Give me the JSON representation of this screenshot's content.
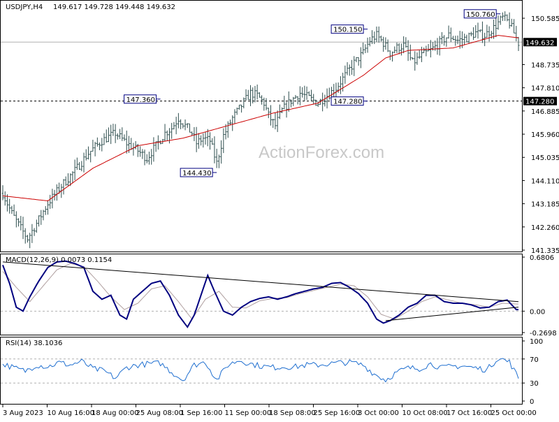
{
  "header": {
    "symbol": "USDJPY,H4",
    "ohlc": "149.617 149.728 149.448 149.632"
  },
  "watermark": "ActionForex.com",
  "colors": {
    "price_bars": "#2f4f4f",
    "ma": "#cc0000",
    "macd_line": "#000080",
    "signal_line": "#b0a0a0",
    "rsi": "#1f6fd0",
    "label_border": "#000080",
    "current_tag_bg": "#000000",
    "current_tag_fg": "#ffffff"
  },
  "chart_data": [
    {
      "type": "candlestick",
      "panel": "price",
      "ylim": [
        141.335,
        151.2
      ],
      "y_ticks": [
        "150.585",
        "149.632",
        "148.735",
        "147.810",
        "147.280",
        "146.885",
        "145.960",
        "145.035",
        "144.110",
        "143.185",
        "142.260",
        "141.335"
      ],
      "current_price": "149.632",
      "level_line": "147.280",
      "x_labels": [
        "3 Aug 2023",
        "10 Aug 16:00",
        "18 Aug 00:00",
        "25 Aug 08:00",
        "1 Sep 16:00",
        "11 Sep 00:00",
        "18 Sep 08:00",
        "25 Sep 16:00",
        "3 Oct 00:00",
        "10 Oct 08:00",
        "17 Oct 16:00",
        "25 Oct 00:00"
      ],
      "close_path": [
        [
          0,
          143.6
        ],
        [
          4,
          142.8
        ],
        [
          8,
          142.2
        ],
        [
          11,
          141.8
        ],
        [
          15,
          142.4
        ],
        [
          20,
          143.2
        ],
        [
          26,
          143.9
        ],
        [
          32,
          144.5
        ],
        [
          38,
          145.2
        ],
        [
          44,
          145.7
        ],
        [
          50,
          146.0
        ],
        [
          55,
          145.6
        ],
        [
          60,
          145.3
        ],
        [
          64,
          145.0
        ],
        [
          68,
          145.5
        ],
        [
          72,
          146.0
        ],
        [
          75,
          146.2
        ],
        [
          78,
          146.6
        ],
        [
          81,
          146.3
        ],
        [
          84,
          146.0
        ],
        [
          86,
          145.6
        ],
        [
          89,
          145.8
        ],
        [
          92,
          145.7
        ],
        [
          95,
          144.8
        ],
        [
          98,
          145.9
        ],
        [
          102,
          146.6
        ],
        [
          106,
          147.1
        ],
        [
          110,
          147.6
        ],
        [
          113,
          147.5
        ],
        [
          116,
          147.2
        ],
        [
          118,
          146.7
        ],
        [
          121,
          146.3
        ],
        [
          124,
          146.9
        ],
        [
          128,
          147.3
        ],
        [
          132,
          147.6
        ],
        [
          136,
          147.4
        ],
        [
          140,
          147.2
        ],
        [
          144,
          147.5
        ],
        [
          148,
          147.8
        ],
        [
          152,
          148.3
        ],
        [
          156,
          148.8
        ],
        [
          160,
          149.2
        ],
        [
          163,
          149.7
        ],
        [
          166,
          149.9
        ],
        [
          169,
          149.6
        ],
        [
          172,
          149.2
        ],
        [
          175,
          149.4
        ],
        [
          178,
          149.5
        ],
        [
          182,
          148.8
        ],
        [
          186,
          149.1
        ],
        [
          190,
          149.3
        ],
        [
          194,
          149.6
        ],
        [
          198,
          149.9
        ],
        [
          202,
          149.7
        ],
        [
          206,
          149.8
        ],
        [
          210,
          150.0
        ],
        [
          214,
          149.9
        ],
        [
          218,
          150.2
        ],
        [
          222,
          150.6
        ],
        [
          225,
          150.4
        ],
        [
          229,
          149.6
        ]
      ],
      "ma_path": [
        [
          0,
          143.5
        ],
        [
          20,
          143.3
        ],
        [
          40,
          144.6
        ],
        [
          60,
          145.5
        ],
        [
          80,
          145.8
        ],
        [
          100,
          146.3
        ],
        [
          120,
          146.8
        ],
        [
          140,
          147.2
        ],
        [
          160,
          148.3
        ],
        [
          170,
          149.0
        ],
        [
          180,
          149.3
        ],
        [
          200,
          149.4
        ],
        [
          220,
          149.9
        ],
        [
          229,
          149.8
        ]
      ],
      "annotations": [
        {
          "label": "147.360",
          "x": 70,
          "value": 147.36
        },
        {
          "label": "144.430",
          "x": 95,
          "value": 144.43
        },
        {
          "label": "150.150",
          "x": 162,
          "value": 150.15
        },
        {
          "label": "147.280",
          "x": 162,
          "value": 147.28
        },
        {
          "label": "150.760",
          "x": 221,
          "value": 150.76
        }
      ],
      "x_count": 230
    },
    {
      "type": "line",
      "panel": "macd",
      "title": "MACD(12,26,9) 0.0073 0.1154",
      "ylim": [
        -0.2698,
        0.6806
      ],
      "y_ticks": [
        "0.6806",
        "0.00",
        "-0.2698"
      ],
      "series": [
        {
          "values": [
            [
              0,
              0.58
            ],
            [
              3,
              0.35
            ],
            [
              6,
              0.05
            ],
            [
              9,
              0.0
            ],
            [
              12,
              0.18
            ],
            [
              16,
              0.38
            ],
            [
              20,
              0.55
            ],
            [
              24,
              0.62
            ],
            [
              28,
              0.63
            ],
            [
              32,
              0.6
            ],
            [
              36,
              0.55
            ],
            [
              40,
              0.25
            ],
            [
              44,
              0.15
            ],
            [
              48,
              0.2
            ],
            [
              52,
              -0.05
            ],
            [
              55,
              -0.1
            ],
            [
              58,
              0.15
            ],
            [
              62,
              0.25
            ],
            [
              66,
              0.35
            ],
            [
              70,
              0.38
            ],
            [
              74,
              0.2
            ],
            [
              78,
              -0.05
            ],
            [
              82,
              -0.2
            ],
            [
              85,
              -0.05
            ],
            [
              88,
              0.2
            ],
            [
              91,
              0.45
            ],
            [
              94,
              0.25
            ],
            [
              98,
              0.0
            ],
            [
              102,
              -0.05
            ],
            [
              106,
              0.05
            ],
            [
              110,
              0.12
            ],
            [
              114,
              0.16
            ],
            [
              118,
              0.18
            ],
            [
              122,
              0.15
            ],
            [
              126,
              0.18
            ],
            [
              130,
              0.22
            ],
            [
              134,
              0.25
            ],
            [
              138,
              0.28
            ],
            [
              142,
              0.3
            ],
            [
              146,
              0.35
            ],
            [
              150,
              0.36
            ],
            [
              154,
              0.3
            ],
            [
              158,
              0.22
            ],
            [
              162,
              0.1
            ],
            [
              166,
              -0.1
            ],
            [
              169,
              -0.15
            ],
            [
              172,
              -0.12
            ],
            [
              176,
              -0.05
            ],
            [
              180,
              0.05
            ],
            [
              184,
              0.1
            ],
            [
              188,
              0.2
            ],
            [
              192,
              0.2
            ],
            [
              196,
              0.12
            ],
            [
              200,
              0.1
            ],
            [
              204,
              0.1
            ],
            [
              208,
              0.08
            ],
            [
              212,
              0.04
            ],
            [
              216,
              0.05
            ],
            [
              220,
              0.12
            ],
            [
              224,
              0.14
            ],
            [
              228,
              0.02
            ]
          ]
        },
        {
          "values": [
            [
              0,
              0.5
            ],
            [
              6,
              0.3
            ],
            [
              12,
              0.12
            ],
            [
              18,
              0.32
            ],
            [
              24,
              0.52
            ],
            [
              30,
              0.6
            ],
            [
              36,
              0.56
            ],
            [
              42,
              0.38
            ],
            [
              48,
              0.18
            ],
            [
              54,
              0.02
            ],
            [
              60,
              0.1
            ],
            [
              66,
              0.28
            ],
            [
              72,
              0.32
            ],
            [
              78,
              0.12
            ],
            [
              84,
              -0.1
            ],
            [
              90,
              0.15
            ],
            [
              96,
              0.25
            ],
            [
              102,
              0.05
            ],
            [
              108,
              0.04
            ],
            [
              114,
              0.13
            ],
            [
              120,
              0.16
            ],
            [
              126,
              0.17
            ],
            [
              132,
              0.22
            ],
            [
              138,
              0.26
            ],
            [
              144,
              0.3
            ],
            [
              150,
              0.34
            ],
            [
              156,
              0.32
            ],
            [
              162,
              0.18
            ],
            [
              168,
              -0.04
            ],
            [
              174,
              -0.1
            ],
            [
              180,
              0.0
            ],
            [
              186,
              0.12
            ],
            [
              192,
              0.18
            ],
            [
              198,
              0.14
            ],
            [
              204,
              0.1
            ],
            [
              210,
              0.08
            ],
            [
              216,
              0.05
            ],
            [
              222,
              0.1
            ],
            [
              228,
              0.09
            ]
          ]
        }
      ],
      "trendlines": [
        [
          [
            0,
            0.62
          ],
          [
            229,
            0.12
          ]
        ],
        [
          [
            170,
            -0.12
          ],
          [
            229,
            0.05
          ]
        ]
      ],
      "zero_line": 0
    },
    {
      "type": "line",
      "panel": "rsi",
      "title": "RSI(14) 38.1036",
      "ylim": [
        0,
        100
      ],
      "y_ticks": [
        "100",
        "70",
        "30",
        "0"
      ],
      "levels": [
        70,
        30
      ],
      "series": [
        {
          "values": [
            [
              0,
              62
            ],
            [
              5,
              55
            ],
            [
              10,
              50
            ],
            [
              15,
              60
            ],
            [
              20,
              57
            ],
            [
              25,
              64
            ],
            [
              30,
              60
            ],
            [
              35,
              66
            ],
            [
              40,
              54
            ],
            [
              45,
              50
            ],
            [
              50,
              38
            ],
            [
              55,
              56
            ],
            [
              60,
              60
            ],
            [
              65,
              62
            ],
            [
              70,
              63
            ],
            [
              75,
              48
            ],
            [
              80,
              35
            ],
            [
              85,
              60
            ],
            [
              90,
              65
            ],
            [
              95,
              35
            ],
            [
              100,
              60
            ],
            [
              105,
              68
            ],
            [
              110,
              62
            ],
            [
              115,
              58
            ],
            [
              120,
              56
            ],
            [
              125,
              57
            ],
            [
              130,
              57
            ],
            [
              135,
              60
            ],
            [
              140,
              60
            ],
            [
              145,
              62
            ],
            [
              150,
              64
            ],
            [
              155,
              64
            ],
            [
              160,
              60
            ],
            [
              165,
              45
            ],
            [
              170,
              35
            ],
            [
              175,
              48
            ],
            [
              180,
              55
            ],
            [
              185,
              54
            ],
            [
              190,
              62
            ],
            [
              195,
              55
            ],
            [
              200,
              58
            ],
            [
              205,
              58
            ],
            [
              210,
              55
            ],
            [
              215,
              52
            ],
            [
              220,
              72
            ],
            [
              225,
              65
            ],
            [
              229,
              38
            ]
          ]
        }
      ]
    }
  ]
}
